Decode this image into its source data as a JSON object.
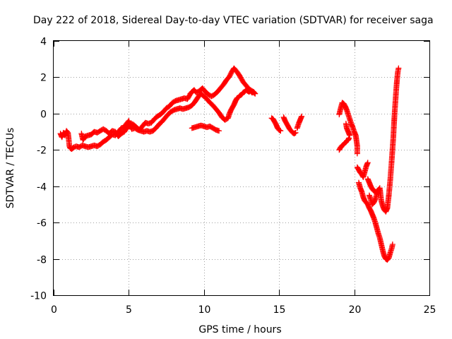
{
  "chart_data": {
    "type": "scatter",
    "title": "Day 222 of 2018, Sidereal Day-to-day VTEC variation (SDTVAR) for receiver saga",
    "xlabel": "GPS time / hours",
    "ylabel": "SDTVAR / TECUs",
    "xlim": [
      0,
      25
    ],
    "ylim": [
      -10,
      4
    ],
    "xticks": [
      "0",
      "5",
      "10",
      "15",
      "20",
      "25"
    ],
    "yticks": [
      "-10",
      "-8",
      "-6",
      "-4",
      "-2",
      "0",
      "2",
      "4"
    ],
    "marker": "plus",
    "grid": true,
    "series": [
      {
        "name": "saga",
        "color": "#ff0000",
        "segments": [
          [
            [
              0.45,
              -1.1
            ],
            [
              0.55,
              -1.3
            ],
            [
              0.65,
              -1.05
            ],
            [
              0.75,
              -1.2
            ],
            [
              0.85,
              -0.95
            ],
            [
              0.95,
              -1.05
            ],
            [
              1.0,
              -1.4
            ],
            [
              1.05,
              -1.8
            ],
            [
              1.1,
              -1.9
            ],
            [
              1.2,
              -1.95
            ],
            [
              1.35,
              -1.85
            ],
            [
              1.5,
              -1.8
            ],
            [
              1.7,
              -1.85
            ],
            [
              1.9,
              -1.75
            ],
            [
              2.1,
              -1.8
            ],
            [
              2.3,
              -1.85
            ],
            [
              2.5,
              -1.8
            ],
            [
              2.7,
              -1.75
            ],
            [
              2.9,
              -1.8
            ],
            [
              3.1,
              -1.7
            ],
            [
              3.3,
              -1.55
            ],
            [
              3.5,
              -1.45
            ],
            [
              3.7,
              -1.3
            ],
            [
              3.9,
              -1.15
            ],
            [
              4.1,
              -1.2
            ],
            [
              4.3,
              -1.0
            ],
            [
              4.5,
              -0.8
            ],
            [
              4.7,
              -0.75
            ],
            [
              4.85,
              -0.55
            ],
            [
              5.0,
              -0.4
            ],
            [
              5.1,
              -0.7
            ],
            [
              5.2,
              -0.85
            ],
            [
              5.4,
              -0.8
            ],
            [
              5.6,
              -0.9
            ],
            [
              5.8,
              -0.95
            ],
            [
              6.0,
              -1.0
            ],
            [
              6.2,
              -0.95
            ],
            [
              6.4,
              -1.0
            ],
            [
              6.6,
              -0.95
            ],
            [
              6.8,
              -0.8
            ],
            [
              7.0,
              -0.6
            ],
            [
              7.2,
              -0.45
            ],
            [
              7.4,
              -0.25
            ],
            [
              7.6,
              -0.05
            ],
            [
              7.8,
              0.1
            ],
            [
              8.0,
              0.2
            ],
            [
              8.2,
              0.25
            ],
            [
              8.4,
              0.3
            ],
            [
              8.6,
              0.25
            ],
            [
              8.8,
              0.3
            ],
            [
              9.0,
              0.35
            ],
            [
              9.2,
              0.45
            ],
            [
              9.4,
              0.65
            ],
            [
              9.6,
              0.9
            ],
            [
              9.8,
              1.1
            ],
            [
              10.0,
              0.95
            ],
            [
              10.2,
              0.8
            ],
            [
              10.4,
              0.6
            ],
            [
              10.6,
              0.45
            ],
            [
              10.8,
              0.25
            ],
            [
              11.0,
              0.05
            ],
            [
              11.2,
              -0.2
            ],
            [
              11.4,
              -0.35
            ],
            [
              11.6,
              -0.25
            ],
            [
              11.7,
              0.0
            ],
            [
              11.8,
              0.2
            ],
            [
              11.9,
              0.35
            ],
            [
              12.0,
              0.5
            ],
            [
              12.1,
              0.7
            ],
            [
              12.2,
              0.85
            ],
            [
              12.3,
              0.9
            ],
            [
              12.4,
              1.0
            ],
            [
              12.5,
              1.05
            ],
            [
              12.6,
              1.15
            ],
            [
              12.7,
              1.2
            ],
            [
              12.8,
              1.3
            ],
            [
              12.9,
              1.25
            ],
            [
              13.0,
              1.2
            ],
            [
              13.1,
              1.25
            ],
            [
              13.2,
              1.15
            ],
            [
              13.3,
              1.2
            ],
            [
              13.4,
              1.1
            ]
          ],
          [
            [
              13.4,
              1.1
            ],
            [
              13.2,
              1.25
            ],
            [
              13.0,
              1.35
            ],
            [
              12.8,
              1.55
            ],
            [
              12.6,
              1.75
            ],
            [
              12.4,
              2.05
            ],
            [
              12.2,
              2.3
            ],
            [
              12.0,
              2.5
            ],
            [
              11.85,
              2.3
            ],
            [
              11.7,
              2.05
            ],
            [
              11.5,
              1.85
            ],
            [
              11.3,
              1.6
            ],
            [
              11.1,
              1.4
            ],
            [
              10.9,
              1.2
            ],
            [
              10.7,
              1.05
            ],
            [
              10.5,
              0.95
            ],
            [
              10.3,
              1.05
            ],
            [
              10.1,
              1.2
            ],
            [
              9.9,
              1.4
            ],
            [
              9.7,
              1.25
            ],
            [
              9.5,
              1.15
            ],
            [
              9.35,
              1.3
            ],
            [
              9.2,
              1.2
            ],
            [
              9.1,
              1.1
            ]
          ],
          [
            [
              9.1,
              1.1
            ],
            [
              8.9,
              0.8
            ],
            [
              8.7,
              0.85
            ],
            [
              8.5,
              0.8
            ],
            [
              8.3,
              0.75
            ],
            [
              8.1,
              0.7
            ],
            [
              7.9,
              0.6
            ],
            [
              7.7,
              0.4
            ],
            [
              7.5,
              0.3
            ],
            [
              7.3,
              0.1
            ],
            [
              7.1,
              -0.05
            ],
            [
              6.9,
              -0.15
            ],
            [
              6.7,
              -0.3
            ],
            [
              6.5,
              -0.5
            ],
            [
              6.3,
              -0.55
            ],
            [
              6.1,
              -0.5
            ],
            [
              5.9,
              -0.7
            ],
            [
              5.7,
              -0.9
            ],
            [
              5.5,
              -0.75
            ],
            [
              5.3,
              -0.6
            ],
            [
              5.1,
              -0.55
            ],
            [
              4.9,
              -0.75
            ],
            [
              4.7,
              -1.0
            ],
            [
              4.5,
              -1.1
            ],
            [
              4.3,
              -1.25
            ],
            [
              4.1,
              -1.0
            ],
            [
              3.9,
              -0.95
            ],
            [
              3.7,
              -1.1
            ],
            [
              3.5,
              -0.95
            ],
            [
              3.3,
              -0.85
            ],
            [
              3.1,
              -0.95
            ],
            [
              2.9,
              -1.05
            ],
            [
              2.7,
              -1.0
            ],
            [
              2.5,
              -1.15
            ],
            [
              2.3,
              -1.2
            ],
            [
              2.1,
              -1.25
            ],
            [
              1.95,
              -1.45
            ],
            [
              1.85,
              -1.1
            ]
          ],
          [
            [
              9.2,
              -0.8
            ],
            [
              9.4,
              -0.75
            ],
            [
              9.6,
              -0.7
            ],
            [
              9.8,
              -0.65
            ],
            [
              10.0,
              -0.7
            ],
            [
              10.2,
              -0.75
            ],
            [
              10.4,
              -0.7
            ],
            [
              10.6,
              -0.8
            ],
            [
              10.8,
              -0.9
            ],
            [
              11.0,
              -0.95
            ]
          ],
          [
            [
              14.5,
              -0.25
            ],
            [
              14.6,
              -0.3
            ],
            [
              14.7,
              -0.45
            ],
            [
              14.8,
              -0.6
            ],
            [
              14.9,
              -0.8
            ],
            [
              15.0,
              -0.9
            ],
            [
              15.1,
              -0.95
            ]
          ],
          [
            [
              15.3,
              -0.2
            ],
            [
              15.4,
              -0.4
            ],
            [
              15.5,
              -0.55
            ],
            [
              15.6,
              -0.7
            ],
            [
              15.7,
              -0.85
            ],
            [
              15.8,
              -0.95
            ],
            [
              15.9,
              -1.05
            ],
            [
              16.0,
              -1.1
            ],
            [
              16.1,
              -1.05
            ]
          ],
          [
            [
              16.2,
              -0.8
            ],
            [
              16.3,
              -0.55
            ],
            [
              16.4,
              -0.35
            ],
            [
              16.5,
              -0.15
            ]
          ],
          [
            [
              19.0,
              -2.0
            ],
            [
              19.1,
              -1.85
            ],
            [
              19.2,
              -1.75
            ],
            [
              19.3,
              -1.7
            ],
            [
              19.4,
              -1.6
            ],
            [
              19.5,
              -1.5
            ],
            [
              19.6,
              -1.45
            ],
            [
              19.65,
              -1.35
            ]
          ],
          [
            [
              19.0,
              -0.05
            ],
            [
              19.1,
              0.3
            ],
            [
              19.2,
              0.6
            ],
            [
              19.3,
              0.55
            ],
            [
              19.4,
              0.4
            ],
            [
              19.5,
              0.2
            ],
            [
              19.6,
              -0.05
            ],
            [
              19.7,
              -0.3
            ],
            [
              19.8,
              -0.55
            ],
            [
              19.9,
              -0.75
            ],
            [
              20.0,
              -1.0
            ],
            [
              20.1,
              -1.2
            ],
            [
              20.15,
              -1.5
            ],
            [
              20.2,
              -1.8
            ],
            [
              20.2,
              -2.2
            ]
          ],
          [
            [
              19.7,
              -1.2
            ],
            [
              19.6,
              -1.0
            ],
            [
              19.5,
              -0.8
            ],
            [
              19.45,
              -0.55
            ]
          ],
          [
            [
              20.2,
              -2.95
            ],
            [
              20.3,
              -3.1
            ],
            [
              20.4,
              -3.25
            ],
            [
              20.5,
              -3.35
            ],
            [
              20.6,
              -3.5
            ],
            [
              20.7,
              -3.2
            ],
            [
              20.8,
              -2.9
            ],
            [
              20.9,
              -2.7
            ]
          ],
          [
            [
              20.3,
              -3.8
            ],
            [
              20.4,
              -4.1
            ],
            [
              20.5,
              -4.3
            ],
            [
              20.6,
              -4.6
            ],
            [
              20.7,
              -4.8
            ],
            [
              20.8,
              -4.9
            ],
            [
              20.9,
              -5.0
            ],
            [
              21.0,
              -5.2
            ],
            [
              21.1,
              -5.35
            ],
            [
              21.2,
              -5.55
            ],
            [
              21.3,
              -5.75
            ],
            [
              21.4,
              -6.0
            ],
            [
              21.5,
              -6.3
            ],
            [
              21.6,
              -6.6
            ],
            [
              21.7,
              -6.85
            ],
            [
              21.8,
              -7.2
            ],
            [
              21.9,
              -7.55
            ],
            [
              22.0,
              -7.85
            ],
            [
              22.1,
              -8.0
            ],
            [
              22.2,
              -8.05
            ],
            [
              22.3,
              -7.95
            ],
            [
              22.4,
              -7.65
            ],
            [
              22.5,
              -7.4
            ],
            [
              22.55,
              -7.2
            ]
          ],
          [
            [
              20.9,
              -3.6
            ],
            [
              21.0,
              -3.8
            ],
            [
              21.1,
              -4.0
            ],
            [
              21.2,
              -4.15
            ],
            [
              21.3,
              -4.25
            ],
            [
              21.4,
              -4.3
            ],
            [
              21.5,
              -4.35
            ],
            [
              21.6,
              -4.2
            ],
            [
              21.7,
              -4.1
            ],
            [
              21.8,
              -4.8
            ],
            [
              21.9,
              -5.1
            ],
            [
              22.0,
              -5.3
            ],
            [
              22.1,
              -5.4
            ],
            [
              22.2,
              -5.2
            ]
          ],
          [
            [
              21.6,
              -4.2
            ],
            [
              21.4,
              -4.7
            ],
            [
              21.3,
              -4.9
            ],
            [
              21.2,
              -5.0
            ],
            [
              21.1,
              -4.75
            ],
            [
              21.0,
              -4.5
            ]
          ],
          [
            [
              22.2,
              -5.2
            ],
            [
              22.3,
              -4.5
            ],
            [
              22.4,
              -3.6
            ],
            [
              22.5,
              -2.5
            ],
            [
              22.6,
              -1.3
            ],
            [
              22.65,
              -0.5
            ],
            [
              22.7,
              0.2
            ],
            [
              22.75,
              0.8
            ],
            [
              22.8,
              1.4
            ],
            [
              22.85,
              1.9
            ],
            [
              22.9,
              2.3
            ],
            [
              22.95,
              2.5
            ]
          ]
        ]
      }
    ]
  }
}
